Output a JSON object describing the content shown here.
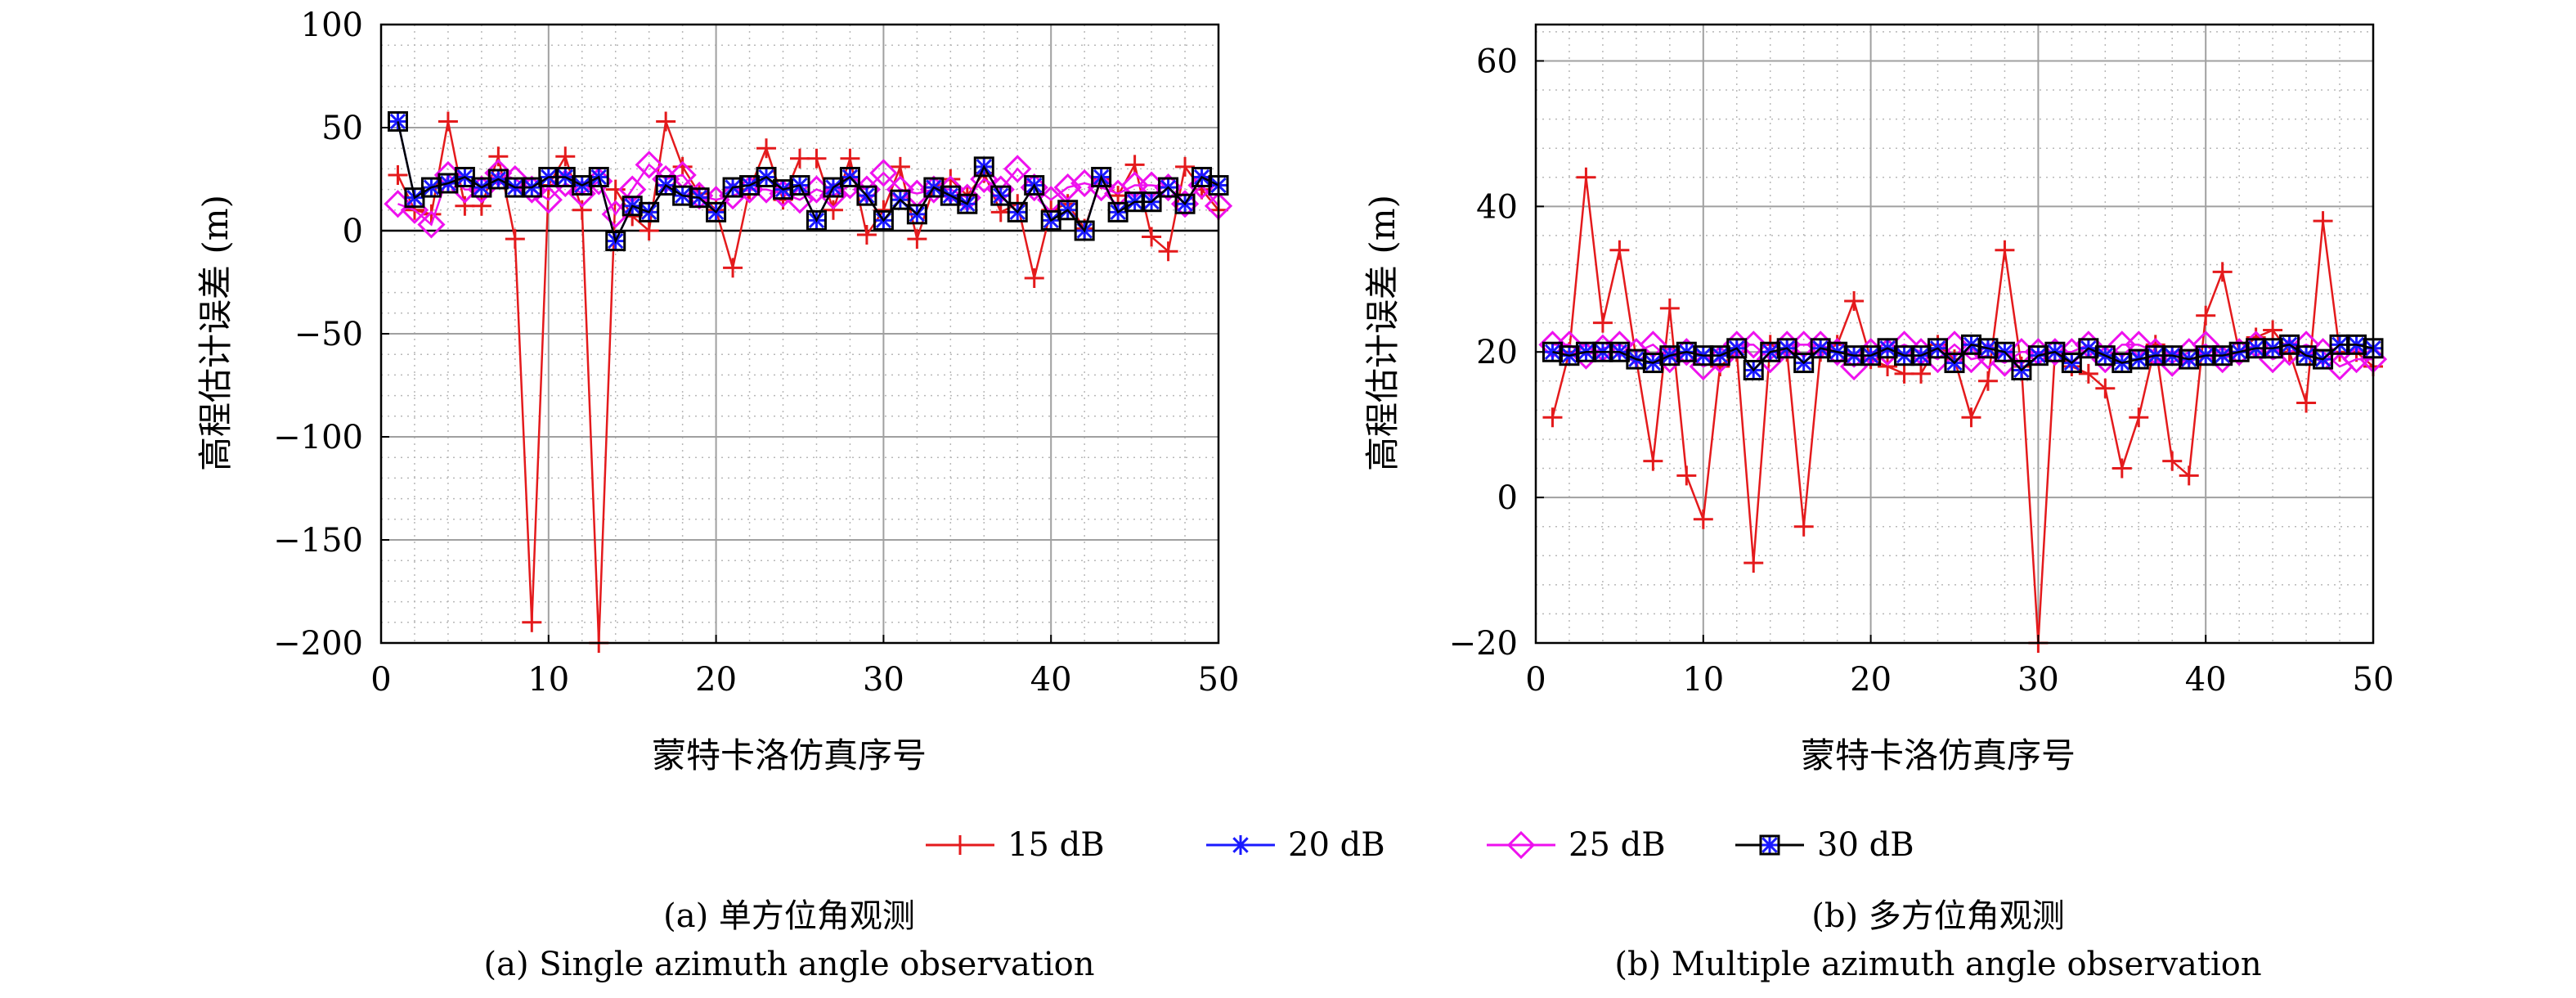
{
  "chart_data": [
    {
      "type": "line",
      "title": "(a) 单方位角观测",
      "subtitle": "(a) Single azimuth angle observation",
      "xlabel": "蒙特卡洛仿真序号",
      "ylabel": "高程估计误差 (m)",
      "xlim": [
        0,
        50
      ],
      "ylim": [
        -200,
        100
      ],
      "xticks": [
        0,
        10,
        20,
        30,
        40,
        50
      ],
      "yticks": [
        -200,
        -150,
        -100,
        -50,
        0,
        50,
        100
      ],
      "ytick_labels": [
        "−200",
        "−150",
        "−100",
        "−50",
        "0",
        "50",
        "100"
      ],
      "grid": true,
      "zero_line": true,
      "x": [
        1,
        2,
        3,
        4,
        5,
        6,
        7,
        8,
        9,
        10,
        11,
        12,
        13,
        14,
        15,
        16,
        17,
        18,
        19,
        20,
        21,
        22,
        23,
        24,
        25,
        26,
        27,
        28,
        29,
        30,
        31,
        32,
        33,
        34,
        35,
        36,
        37,
        38,
        39,
        40,
        41,
        42,
        43,
        44,
        45,
        46,
        47,
        48,
        49,
        50
      ],
      "series": [
        {
          "name": "15 dB",
          "color": "#e41a1c",
          "marker": "plus",
          "values": [
            27,
            10,
            8,
            53,
            12,
            12,
            36,
            -4,
            -190,
            22,
            36,
            10,
            -200,
            20,
            7,
            0,
            53,
            31,
            18,
            10,
            -18,
            20,
            40,
            15,
            35,
            35,
            10,
            35,
            -2,
            10,
            31,
            -4,
            21,
            25,
            17,
            28,
            9,
            13,
            -23,
            10,
            13,
            1,
            25,
            17,
            32,
            -3,
            -10,
            31,
            20,
            10
          ]
        },
        {
          "name": "20 dB",
          "color": "#1a1aff",
          "marker": "asterisk",
          "values": [
            53,
            16,
            21,
            23,
            26,
            21,
            25,
            21,
            21,
            26,
            26,
            22,
            26,
            -5,
            12,
            9,
            22,
            17,
            16,
            9,
            21,
            22,
            26,
            20,
            22,
            5,
            21,
            26,
            17,
            5,
            15,
            8,
            21,
            17,
            13,
            31,
            17,
            9,
            22,
            5,
            10,
            0,
            26,
            9,
            14,
            14,
            21,
            13,
            26,
            22
          ]
        },
        {
          "name": "25 dB",
          "color": "#ee11ee",
          "marker": "diamond",
          "values": [
            13,
            10,
            3,
            27,
            20,
            20,
            28,
            25,
            20,
            15,
            23,
            18,
            24,
            8,
            20,
            32,
            25,
            27,
            17,
            15,
            17,
            20,
            20,
            18,
            15,
            20,
            17,
            22,
            20,
            28,
            20,
            18,
            20,
            20,
            16,
            25,
            20,
            30,
            21,
            15,
            21,
            23,
            21,
            18,
            22,
            22,
            21,
            13,
            22,
            12
          ]
        },
        {
          "name": "30 dB",
          "color": "#000000",
          "marker": "square",
          "values": [
            53,
            16,
            21,
            23,
            26,
            21,
            25,
            21,
            21,
            26,
            26,
            22,
            26,
            -5,
            12,
            9,
            22,
            17,
            16,
            9,
            21,
            22,
            26,
            20,
            22,
            5,
            21,
            26,
            17,
            5,
            15,
            8,
            21,
            17,
            13,
            31,
            17,
            9,
            22,
            5,
            10,
            0,
            26,
            9,
            14,
            14,
            21,
            13,
            26,
            22
          ]
        }
      ]
    },
    {
      "type": "line",
      "title": "(b) 多方位角观测",
      "subtitle": "(b) Multiple azimuth angle observation",
      "xlabel": "蒙特卡洛仿真序号",
      "ylabel": "高程估计误差 (m)",
      "xlim": [
        0,
        50
      ],
      "ylim": [
        -20,
        65
      ],
      "xticks": [
        0,
        10,
        20,
        30,
        40,
        50
      ],
      "yticks": [
        -20,
        0,
        20,
        40,
        60
      ],
      "ytick_labels": [
        "−20",
        "0",
        "20",
        "40",
        "60"
      ],
      "grid": true,
      "zero_line": false,
      "x": [
        1,
        2,
        3,
        4,
        5,
        6,
        7,
        8,
        9,
        10,
        11,
        12,
        13,
        14,
        15,
        16,
        17,
        18,
        19,
        20,
        21,
        22,
        23,
        24,
        25,
        26,
        27,
        28,
        29,
        30,
        31,
        32,
        33,
        34,
        35,
        36,
        37,
        38,
        39,
        40,
        41,
        42,
        43,
        44,
        45,
        46,
        47,
        48,
        49,
        50
      ],
      "series": [
        {
          "name": "15 dB",
          "color": "#e41a1c",
          "marker": "plus",
          "values": [
            11,
            20,
            44,
            24,
            34,
            19,
            5,
            26,
            3,
            -3,
            18,
            20,
            -9,
            21,
            20,
            -4,
            20,
            21,
            27,
            19,
            18,
            17,
            17,
            21,
            19,
            11,
            16,
            34,
            18,
            -20,
            20,
            18,
            17,
            15,
            4,
            11,
            21,
            5,
            3,
            25,
            31,
            20,
            22,
            23,
            20,
            13,
            38,
            20,
            20,
            18
          ]
        },
        {
          "name": "20 dB",
          "color": "#1a1aff",
          "marker": "asterisk",
          "values": [
            20,
            19.5,
            20,
            20,
            20,
            19,
            18.5,
            19.5,
            20,
            19.5,
            19.5,
            20.5,
            17.5,
            20,
            20.5,
            18.5,
            20.5,
            20,
            19.5,
            19.5,
            20.5,
            19.5,
            19.5,
            20.5,
            18.5,
            21,
            20.5,
            20,
            17.5,
            19.5,
            20,
            18.5,
            20.5,
            19.5,
            18.5,
            19,
            19.5,
            19.5,
            19,
            19.5,
            19.5,
            20,
            20.5,
            20.5,
            21,
            19.5,
            19,
            21,
            21,
            20.5
          ]
        },
        {
          "name": "25 dB",
          "color": "#ee11ee",
          "marker": "diamond",
          "values": [
            21,
            21,
            19.5,
            20.5,
            21,
            20,
            21,
            19,
            20,
            18,
            19,
            21,
            21,
            19,
            21,
            21,
            21,
            20,
            18,
            20,
            20,
            21,
            20,
            19,
            21,
            19,
            19.5,
            18.5,
            20,
            20,
            20,
            20,
            21,
            19,
            21,
            21,
            20,
            18.5,
            20,
            21,
            19,
            20,
            21,
            19,
            20,
            21,
            20,
            18,
            19,
            19
          ]
        },
        {
          "name": "30 dB",
          "color": "#000000",
          "marker": "square",
          "values": [
            20,
            19.5,
            20,
            20,
            20,
            19,
            18.5,
            19.5,
            20,
            19.5,
            19.5,
            20.5,
            17.5,
            20,
            20.5,
            18.5,
            20.5,
            20,
            19.5,
            19.5,
            20.5,
            19.5,
            19.5,
            20.5,
            18.5,
            21,
            20.5,
            20,
            17.5,
            19.5,
            20,
            18.5,
            20.5,
            19.5,
            18.5,
            19,
            19.5,
            19.5,
            19,
            19.5,
            19.5,
            20,
            20.5,
            20.5,
            21,
            19.5,
            19,
            21,
            21,
            20.5
          ]
        }
      ]
    }
  ],
  "legend": {
    "placement": "bottom-center",
    "items": [
      "15 dB",
      "20 dB",
      "25 dB",
      "30 dB"
    ]
  }
}
